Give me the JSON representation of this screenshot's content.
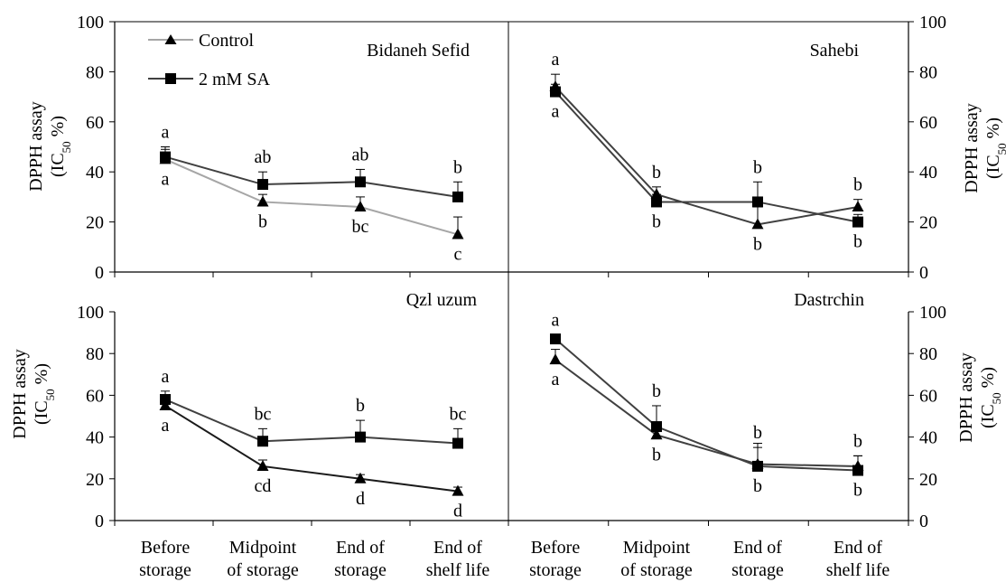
{
  "legend": {
    "control": "Control",
    "sa": "2 mM SA"
  },
  "y_axis_label": {
    "line1": "DPPH assay",
    "line2_prefix": "(IC",
    "line2_sub": "50",
    "line2_suffix": " %)"
  },
  "x_tick_labels": [
    [
      "Before",
      "storage"
    ],
    [
      "Midpoint",
      "of storage"
    ],
    [
      "End of",
      "storage"
    ],
    [
      "End of",
      "shelf life"
    ]
  ],
  "chart_data": [
    {
      "type": "line",
      "title": "Bidaneh Sefid",
      "categories": [
        "Before storage",
        "Midpoint of storage",
        "End of storage",
        "End of shelf life"
      ],
      "ylim": [
        0,
        100
      ],
      "y_ticks": [
        "0",
        "20",
        "40",
        "60",
        "80",
        "100"
      ],
      "series": [
        {
          "name": "Control",
          "color": "#a6a6a6",
          "marker": "triangle",
          "values": [
            45,
            28,
            26,
            15
          ],
          "errors": [
            4,
            3,
            4,
            7
          ],
          "letters": [
            "a",
            "b",
            "bc",
            "c"
          ]
        },
        {
          "name": "2 mM SA",
          "color": "#404040",
          "marker": "square",
          "values": [
            46,
            35,
            36,
            30
          ],
          "errors": [
            4,
            5,
            5,
            6
          ],
          "letters": [
            "a",
            "ab",
            "ab",
            "b"
          ]
        }
      ]
    },
    {
      "type": "line",
      "title": "Sahebi",
      "categories": [
        "Before storage",
        "Midpoint of storage",
        "End of storage",
        "End of shelf life"
      ],
      "ylim": [
        0,
        100
      ],
      "y_ticks": [
        "0",
        "20",
        "40",
        "60",
        "80",
        "100"
      ],
      "series": [
        {
          "name": "Control",
          "color": "#404040",
          "marker": "triangle",
          "values": [
            74,
            31,
            19,
            26
          ],
          "errors": [
            5,
            3,
            7,
            3
          ],
          "letters": [
            "a",
            "b",
            "b",
            "b"
          ]
        },
        {
          "name": "2 mM SA",
          "color": "#404040",
          "marker": "square",
          "values": [
            72,
            28,
            28,
            20
          ],
          "errors": [
            3,
            3,
            8,
            3
          ],
          "letters": [
            "a",
            "b",
            "b",
            "b"
          ]
        }
      ]
    },
    {
      "type": "line",
      "title": "Qzl uzum",
      "categories": [
        "Before storage",
        "Midpoint of storage",
        "End of storage",
        "End of shelf life"
      ],
      "ylim": [
        0,
        100
      ],
      "y_ticks": [
        "0",
        "20",
        "40",
        "60",
        "80",
        "100"
      ],
      "series": [
        {
          "name": "Control",
          "color": "#1a1a1a",
          "marker": "triangle",
          "values": [
            55,
            26,
            20,
            14
          ],
          "errors": [
            2,
            3,
            2,
            2
          ],
          "letters": [
            "a",
            "cd",
            "d",
            "d"
          ]
        },
        {
          "name": "2 mM SA",
          "color": "#404040",
          "marker": "square",
          "values": [
            58,
            38,
            40,
            37
          ],
          "errors": [
            4,
            6,
            8,
            7
          ],
          "letters": [
            "a",
            "bc",
            "b",
            "bc"
          ]
        }
      ]
    },
    {
      "type": "line",
      "title": "Dastrchin",
      "categories": [
        "Before storage",
        "Midpoint of storage",
        "End of storage",
        "End of shelf life"
      ],
      "ylim": [
        0,
        100
      ],
      "y_ticks": [
        "0",
        "20",
        "40",
        "60",
        "80",
        "100"
      ],
      "series": [
        {
          "name": "Control",
          "color": "#404040",
          "marker": "triangle",
          "values": [
            77,
            41,
            27,
            26
          ],
          "errors": [
            5,
            5,
            8,
            5
          ],
          "letters": [
            "a",
            "b",
            "b",
            "b"
          ]
        },
        {
          "name": "2 mM SA",
          "color": "#404040",
          "marker": "square",
          "values": [
            87,
            45,
            26,
            24
          ],
          "errors": [
            2,
            10,
            11,
            7
          ],
          "letters": [
            "a",
            "b",
            "b",
            "b"
          ]
        }
      ]
    }
  ]
}
